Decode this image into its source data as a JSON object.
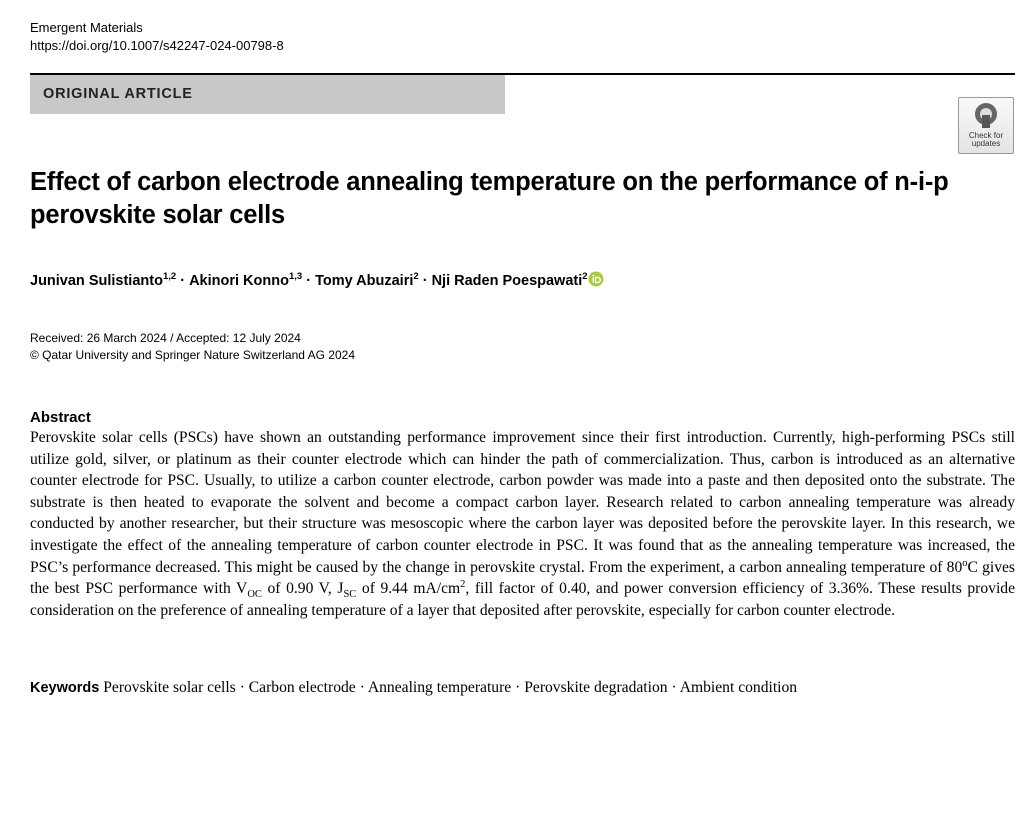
{
  "header": {
    "journal": "Emergent Materials",
    "doi": "https://doi.org/10.1007/s42247-024-00798-8",
    "section": "ORIGINAL ARTICLE",
    "badge": "Check for updates"
  },
  "title": "Effect of carbon electrode annealing temperature on the performance of n-i-p perovskite solar cells",
  "authors": {
    "separator": "·",
    "list": [
      {
        "name": "Junivan Sulistianto",
        "affiliations": "1,2"
      },
      {
        "name": "Akinori Konno",
        "affiliations": "1,3"
      },
      {
        "name": "Tomy Abuzairi",
        "affiliations": "2"
      },
      {
        "name": "Nji Raden Poespawati",
        "affiliations": "2"
      }
    ]
  },
  "dates": "Received: 26 March 2024 / Accepted: 12 July 2024",
  "copyright": "© Qatar University and Springer Nature Switzerland AG 2024",
  "abstract": {
    "heading": "Abstract",
    "text": [
      "Perovskite solar cells (PSCs) have shown an outstanding performance improvement since their first introduction. Currently, high-performing PSCs still utilize gold, silver, or platinum as their counter electrode which can hinder the path of commercialization. Thus, carbon is introduced as an alternative counter electrode for PSC. Usually, to utilize a carbon counter electrode, carbon powder was made into a paste and then deposited onto the substrate. The substrate is then heated to evaporate the solvent and become a compact carbon layer. Research related to carbon annealing temperature was already conducted by another researcher, but their structure was mesoscopic where the carbon layer was deposited before the perovskite layer. In this research, we investigate the effect of the annealing temperature of carbon counter electrode in PSC. It was found that as the annealing temperature was increased, the PSC’s performance decreased. This might be caused by the change in perovskite crystal. From the experiment, a carbon annealing temperature of 80",
      "o",
      "C gives the best PSC performance with V",
      "OC",
      " of 0.90 V, J",
      "SC",
      " of 9.44 mA/cm",
      "2",
      ", fill factor of 0.40, and power conversion efficiency of 3.36%. These results provide consideration on the preference of annealing temperature of a layer that deposited after perovskite, especially for carbon counter electrode."
    ]
  },
  "keywords": {
    "heading": "Keywords",
    "separator": "·",
    "list": [
      "Perovskite solar cells",
      "Carbon electrode",
      "Annealing temperature",
      "Perovskite degradation",
      "Ambient condition"
    ]
  }
}
